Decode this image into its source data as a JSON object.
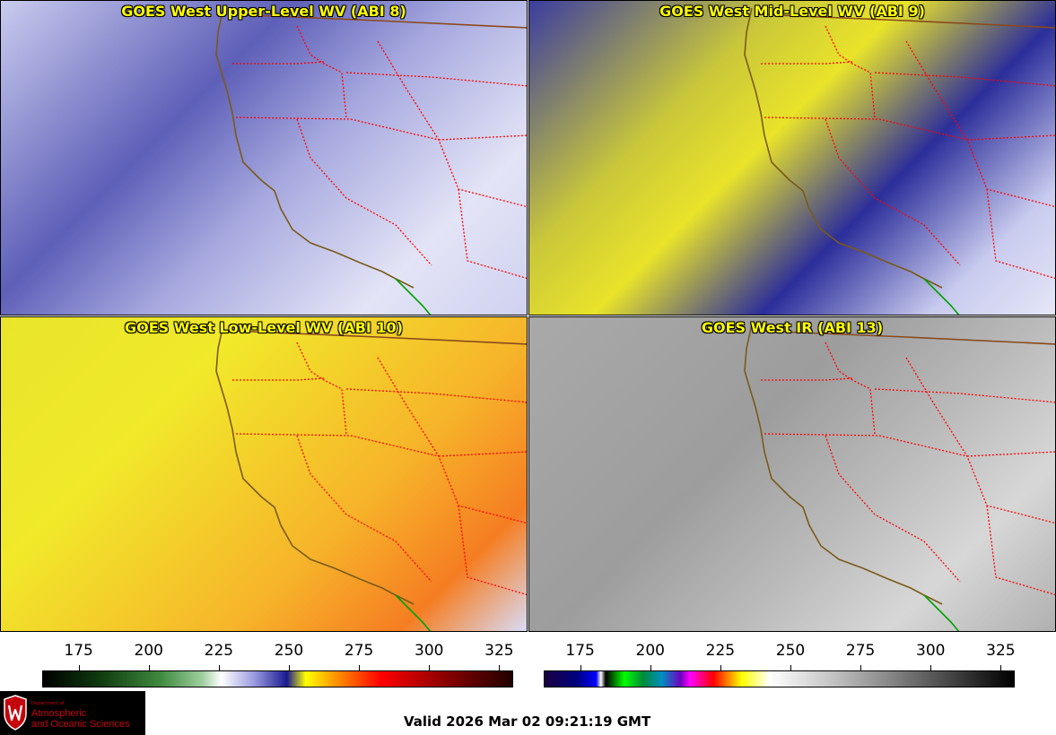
{
  "panels": [
    {
      "id": "p1",
      "title": "GOES West Upper-Level WV (ABI 8)",
      "product": "upper-level-water-vapor"
    },
    {
      "id": "p2",
      "title": "GOES West Mid-Level WV (ABI 9)",
      "product": "mid-level-water-vapor"
    },
    {
      "id": "p3",
      "title": "GOES West Low-Level WV (ABI 10)",
      "product": "low-level-water-vapor"
    },
    {
      "id": "p4",
      "title": "GOES West IR (ABI 13)",
      "product": "infrared"
    }
  ],
  "colorbars": {
    "water_vapor": {
      "ticks": [
        "175",
        "200",
        "225",
        "250",
        "275",
        "300",
        "325"
      ],
      "min": 162,
      "max": 330
    },
    "infrared": {
      "ticks": [
        "175",
        "200",
        "225",
        "250",
        "275",
        "300",
        "325"
      ],
      "min": 162,
      "max": 330
    }
  },
  "map_colors": {
    "coastline": "#7a5a1a",
    "state_borders": "#ff0000",
    "international_border": "#8a4a1a",
    "mexico_border": "#00a000"
  },
  "footer": {
    "valid_time": "Valid 2026 Mar 02 09:21:19 GMT",
    "logo": {
      "department": "Department of",
      "line1": "Atmospheric",
      "line2": "and Oceanic Sciences",
      "crest_icon": "uw-crest-icon"
    }
  }
}
